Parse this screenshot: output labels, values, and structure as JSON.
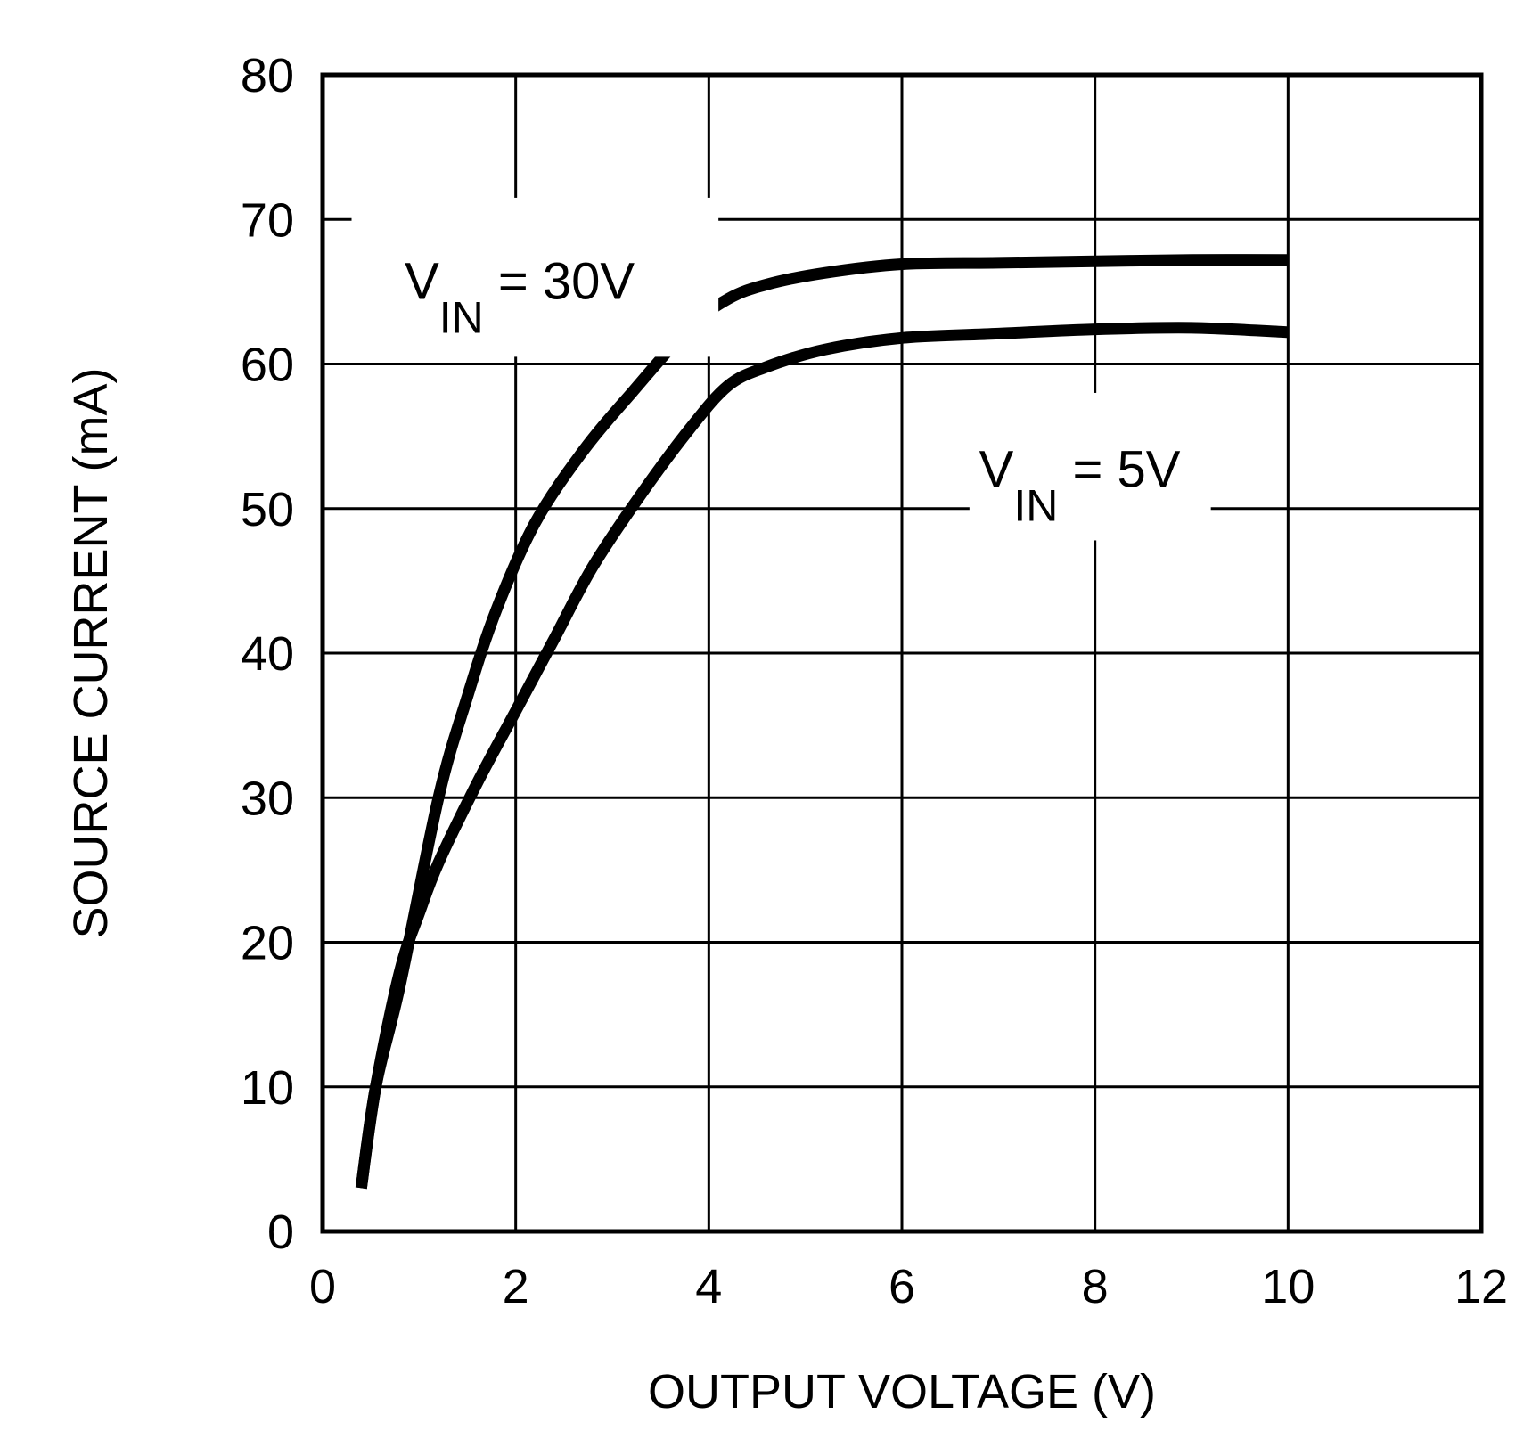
{
  "chart_data": {
    "type": "line",
    "title": "",
    "xlabel": "OUTPUT VOLTAGE (V)",
    "ylabel": "SOURCE CURRENT (mA)",
    "xlim": [
      0,
      12
    ],
    "ylim": [
      0,
      80
    ],
    "x_ticks": [
      0,
      2,
      4,
      6,
      8,
      10,
      12
    ],
    "y_ticks": [
      0,
      10,
      20,
      30,
      40,
      50,
      60,
      70,
      80
    ],
    "x_tick_labels": [
      "0",
      "2",
      "4",
      "6",
      "8",
      "10",
      "12"
    ],
    "y_tick_labels": [
      "0",
      "10",
      "20",
      "30",
      "40",
      "50",
      "60",
      "70",
      "80"
    ],
    "grid": true,
    "line_color": "#000000",
    "series": [
      {
        "label_main": "V",
        "label_sub": "IN",
        "label_tail": " = 30V",
        "points": [
          [
            0.4,
            3
          ],
          [
            0.55,
            10
          ],
          [
            0.8,
            17
          ],
          [
            1.2,
            30
          ],
          [
            1.5,
            37
          ],
          [
            1.8,
            43
          ],
          [
            2.2,
            49
          ],
          [
            2.7,
            54
          ],
          [
            3.2,
            58
          ],
          [
            3.8,
            62.5
          ],
          [
            4.2,
            64.5
          ],
          [
            4.6,
            65.5
          ],
          [
            5.2,
            66.3
          ],
          [
            6,
            66.9
          ],
          [
            7,
            67
          ],
          [
            8,
            67.1
          ],
          [
            9,
            67.2
          ],
          [
            10,
            67.2
          ]
        ]
      },
      {
        "label_main": "V",
        "label_sub": "IN",
        "label_tail": " = 5V",
        "points": [
          [
            0.4,
            3
          ],
          [
            0.55,
            10
          ],
          [
            0.8,
            18
          ],
          [
            1.0,
            22
          ],
          [
            1.2,
            25.5
          ],
          [
            1.6,
            31
          ],
          [
            2.0,
            36
          ],
          [
            2.4,
            41
          ],
          [
            2.8,
            46
          ],
          [
            3.3,
            51
          ],
          [
            3.8,
            55.5
          ],
          [
            4.2,
            58.5
          ],
          [
            4.6,
            59.8
          ],
          [
            5.2,
            61
          ],
          [
            6,
            61.8
          ],
          [
            7,
            62.1
          ],
          [
            8,
            62.4
          ],
          [
            9,
            62.5
          ],
          [
            10,
            62.2
          ]
        ]
      }
    ]
  }
}
